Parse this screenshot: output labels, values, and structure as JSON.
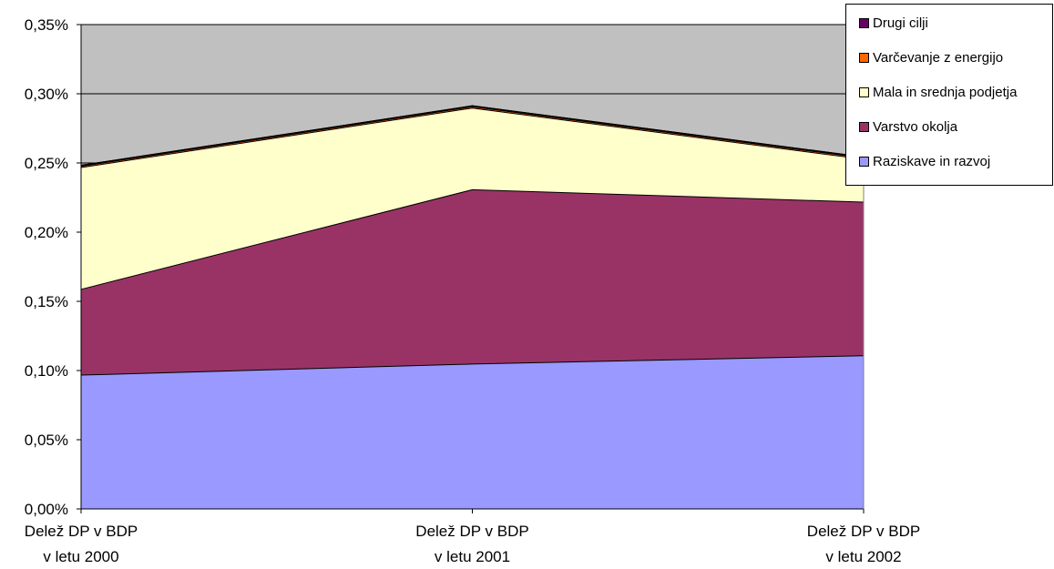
{
  "chart_data": {
    "type": "area",
    "stacked": true,
    "categories": [
      [
        "Delež DP v BDP",
        "v letu 2000"
      ],
      [
        "Delež DP v BDP",
        "v letu 2001"
      ],
      [
        "Delež DP v BDP",
        "v letu  2002"
      ]
    ],
    "y_ticks": [
      "0,00%",
      "0,05%",
      "0,10%",
      "0,15%",
      "0,20%",
      "0,25%",
      "0,30%",
      "0,35%"
    ],
    "ylim": [
      0,
      0.35
    ],
    "grid": true,
    "plot_background": "#c0c0c0",
    "legend_position": "top-right",
    "series": [
      {
        "name": "Raziskave in razvoj",
        "color": "#9999ff",
        "values": [
          0.097,
          0.105,
          0.111
        ]
      },
      {
        "name": "Varstvo okolja",
        "color": "#993366",
        "values": [
          0.062,
          0.126,
          0.111
        ]
      },
      {
        "name": "Mala in srednja podjetja",
        "color": "#ffffcc",
        "values": [
          0.088,
          0.059,
          0.031
        ]
      },
      {
        "name": "Varčevanje z energijo",
        "color": "#ff6600",
        "values": [
          0.001,
          0.001,
          0.001
        ]
      },
      {
        "name": "Drugi cilji",
        "color": "#660066",
        "values": [
          0.0,
          0.0,
          0.0
        ]
      }
    ],
    "legend_order": [
      "Drugi cilji",
      "Varčevanje z energijo",
      "Mala in srednja podjetja",
      "Varstvo okolja",
      "Raziskave in razvoj"
    ]
  }
}
